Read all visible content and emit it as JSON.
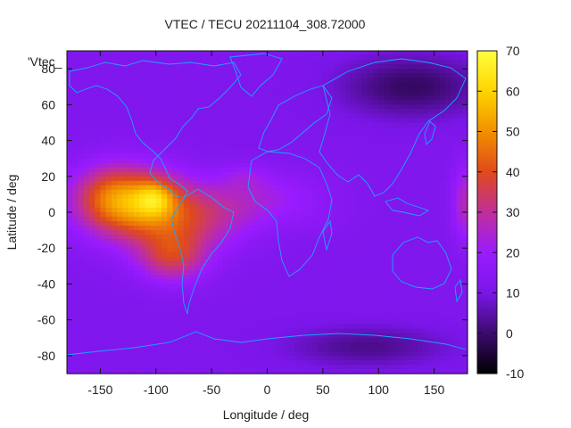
{
  "chart_data": {
    "type": "heatmap",
    "title": "VTEC / TECU 20211104_308.72000",
    "xlabel": "Longitude / deg",
    "ylabel": "Latitude / deg",
    "key_label": "'Vtec_",
    "xlim": [
      -180,
      180
    ],
    "ylim": [
      -90,
      90
    ],
    "x_ticks": [
      -150,
      -100,
      -50,
      0,
      50,
      100,
      150
    ],
    "y_ticks": [
      -80,
      -60,
      -40,
      -20,
      0,
      20,
      40,
      60,
      80
    ],
    "colorbar": {
      "range": [
        -10,
        70
      ],
      "ticks": [
        -10,
        0,
        10,
        20,
        30,
        40,
        50,
        60,
        70
      ]
    },
    "colormap": [
      "#000000",
      "#3c0a6e",
      "#7a16e8",
      "#9a1bff",
      "#c02f9a",
      "#e04a1a",
      "#f29000",
      "#ffd400",
      "#ffff40"
    ],
    "coastline_color": "#19a6ff",
    "background_vtec": 12,
    "hotspots": [
      {
        "lon": -115,
        "lat": 3,
        "sigma_lon": 35,
        "sigma_lat": 14,
        "value": 45
      },
      {
        "lon": -140,
        "lat": 10,
        "sigma_lon": 25,
        "sigma_lat": 12,
        "value": 30
      },
      {
        "lon": -100,
        "lat": 8,
        "sigma_lon": 12,
        "sigma_lat": 7,
        "value": 30
      },
      {
        "lon": -85,
        "lat": -25,
        "sigma_lon": 22,
        "sigma_lat": 10,
        "value": 35
      },
      {
        "lon": -60,
        "lat": -5,
        "sigma_lon": 35,
        "sigma_lat": 12,
        "value": 26
      },
      {
        "lon": -5,
        "lat": 8,
        "sigma_lon": 40,
        "sigma_lat": 10,
        "value": 22
      },
      {
        "lon": -20,
        "lat": 20,
        "sigma_lon": 15,
        "sigma_lat": 5,
        "value": 18
      },
      {
        "lon": 45,
        "lat": -5,
        "sigma_lon": 18,
        "sigma_lat": 6,
        "value": 14
      },
      {
        "lon": 178,
        "lat": 5,
        "sigma_lon": 8,
        "sigma_lat": 15,
        "value": 28
      }
    ],
    "lows": [
      {
        "lon": 130,
        "lat": 70,
        "sigma_lon": 45,
        "sigma_lat": 12,
        "value": -10
      },
      {
        "lon": 90,
        "lat": -75,
        "sigma_lon": 50,
        "sigma_lat": 8,
        "value": -4
      }
    ]
  }
}
